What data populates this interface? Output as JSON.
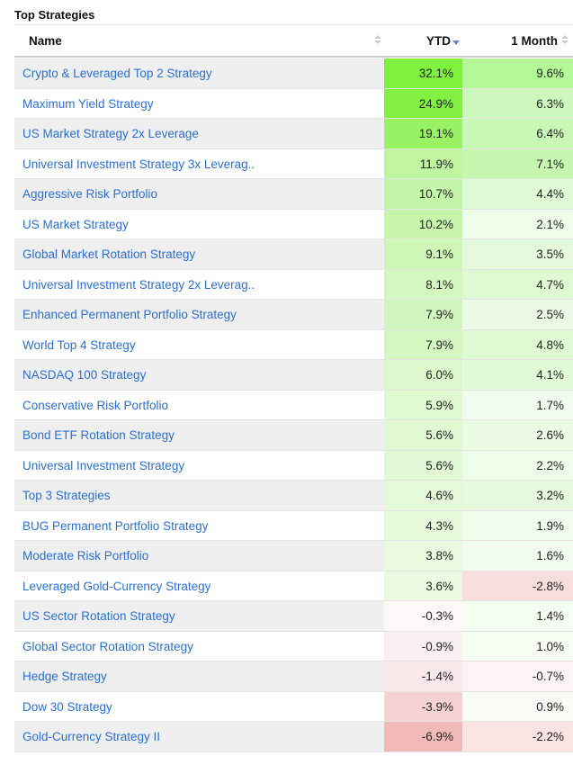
{
  "title": "Top Strategies",
  "columns": {
    "name": "Name",
    "ytd": "YTD",
    "month": "1 Month"
  },
  "rows": [
    {
      "name": "Crypto & Leveraged Top 2 Strategy",
      "ytd": "32.1%",
      "month": "9.6%",
      "ytd_color": "#7ef23c",
      "month_color": "#b3f796"
    },
    {
      "name": "Maximum Yield Strategy",
      "ytd": "24.9%",
      "month": "6.3%",
      "ytd_color": "#82f040",
      "month_color": "#ccf8bc"
    },
    {
      "name": "US Market Strategy 2x Leverage",
      "ytd": "19.1%",
      "month": "6.4%",
      "ytd_color": "#99f264",
      "month_color": "#c9f7b6"
    },
    {
      "name": "Universal Investment Strategy 3x Leverag..",
      "ytd": "11.9%",
      "month": "7.1%",
      "ytd_color": "#bff5a1",
      "month_color": "#c6f6b0"
    },
    {
      "name": "Aggressive Risk Portfolio",
      "ytd": "10.7%",
      "month": "4.4%",
      "ytd_color": "#c3f5a8",
      "month_color": "#e1fad6"
    },
    {
      "name": "US Market Strategy",
      "ytd": "10.2%",
      "month": "2.1%",
      "ytd_color": "#c6f5ab",
      "month_color": "#eefcea"
    },
    {
      "name": "Global Market Rotation Strategy",
      "ytd": "9.1%",
      "month": "3.5%",
      "ytd_color": "#cef6b7",
      "month_color": "#e5fadc"
    },
    {
      "name": "Universal Investment Strategy 2x Leverag..",
      "ytd": "8.1%",
      "month": "4.7%",
      "ytd_color": "#d3f7bf",
      "month_color": "#dff9d3"
    },
    {
      "name": "Enhanced Permanent Portfolio Strategy",
      "ytd": "7.9%",
      "month": "2.5%",
      "ytd_color": "#d1f6bd",
      "month_color": "#ecfbe6"
    },
    {
      "name": "World Top 4 Strategy",
      "ytd": "7.9%",
      "month": "4.8%",
      "ytd_color": "#d4f7c0",
      "month_color": "#dff9d2"
    },
    {
      "name": "NASDAQ 100 Strategy",
      "ytd": "6.0%",
      "month": "4.1%",
      "ytd_color": "#ddf8cd",
      "month_color": "#e1fad6"
    },
    {
      "name": "Conservative Risk Portfolio",
      "ytd": "5.9%",
      "month": "1.7%",
      "ytd_color": "#dff9d1",
      "month_color": "#f2fcee"
    },
    {
      "name": "Bond ETF Rotation Strategy",
      "ytd": "5.6%",
      "month": "2.6%",
      "ytd_color": "#e0f9d2",
      "month_color": "#ebfbe4"
    },
    {
      "name": "Universal Investment Strategy",
      "ytd": "5.6%",
      "month": "2.2%",
      "ytd_color": "#e2f9d5",
      "month_color": "#eefcea"
    },
    {
      "name": "Top 3 Strategies",
      "ytd": "4.6%",
      "month": "3.2%",
      "ytd_color": "#e4fad8",
      "month_color": "#e7fadf"
    },
    {
      "name": "BUG Permanent Portfolio Strategy",
      "ytd": "4.3%",
      "month": "1.9%",
      "ytd_color": "#e7fadc",
      "month_color": "#f0fcec"
    },
    {
      "name": "Moderate Risk Portfolio",
      "ytd": "3.8%",
      "month": "1.6%",
      "ytd_color": "#e9fadf",
      "month_color": "#f2fcef"
    },
    {
      "name": "Leveraged Gold-Currency Strategy",
      "ytd": "3.6%",
      "month": "-2.8%",
      "ytd_color": "#eafbe1",
      "month_color": "#f9dede"
    },
    {
      "name": "US Sector Rotation Strategy",
      "ytd": "-0.3%",
      "month": "1.4%",
      "ytd_color": "#fdf7f7",
      "month_color": "#f3fdf0"
    },
    {
      "name": "Global Sector Rotation Strategy",
      "ytd": "-0.9%",
      "month": "1.0%",
      "ytd_color": "#fbf0f0",
      "month_color": "#f6fdf3"
    },
    {
      "name": "Hedge Strategy",
      "ytd": "-1.4%",
      "month": "-0.7%",
      "ytd_color": "#fae9e9",
      "month_color": "#fcf3f3"
    },
    {
      "name": "Dow 30 Strategy",
      "ytd": "-3.9%",
      "month": "0.9%",
      "ytd_color": "#f6d2d2",
      "month_color": "#f7fdf5"
    },
    {
      "name": "Gold-Currency Strategy II",
      "ytd": "-6.9%",
      "month": "-2.2%",
      "ytd_color": "#f2b9b9",
      "month_color": "#fae3e3"
    }
  ]
}
